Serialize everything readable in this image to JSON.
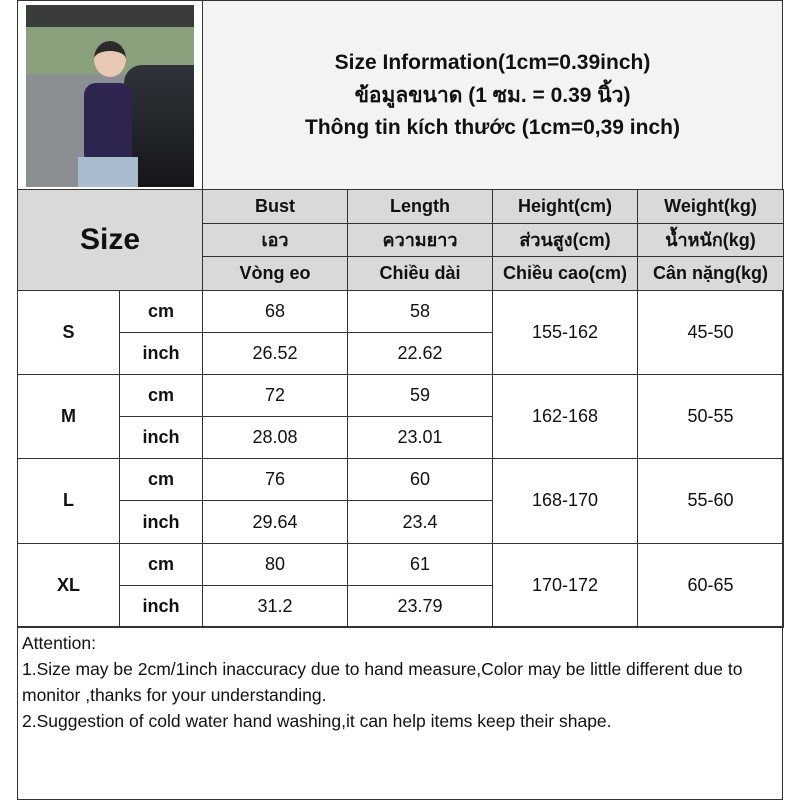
{
  "title": {
    "line1": "Size Information(1cm=0.39inch)",
    "line2": "ข้อมูลขนาด (1 ซม. = 0.39 นิ้ว)",
    "line3": "Thông tin kích thước (1cm=0,39 inch)"
  },
  "table": {
    "size_label": "Size",
    "headers": [
      [
        "Bust",
        "Length",
        "Height(cm)",
        "Weight(kg)"
      ],
      [
        "เอว",
        "ความยาว",
        "ส่วนสูง(cm)",
        "น้ำหนัก(kg)"
      ],
      [
        "Vòng eo",
        "Chiều dài",
        "Chiều cao(cm)",
        "Cân nặng(kg)"
      ]
    ],
    "unit_cm": "cm",
    "unit_inch": "inch",
    "rows": [
      {
        "size": "S",
        "bust_cm": "68",
        "length_cm": "58",
        "bust_inch": "26.52",
        "length_inch": "22.62",
        "height": "155-162",
        "weight": "45-50"
      },
      {
        "size": "M",
        "bust_cm": "72",
        "length_cm": "59",
        "bust_inch": "28.08",
        "length_inch": "23.01",
        "height": "162-168",
        "weight": "50-55"
      },
      {
        "size": "L",
        "bust_cm": "76",
        "length_cm": "60",
        "bust_inch": "29.64",
        "length_inch": "23.4",
        "height": "168-170",
        "weight": "55-60"
      },
      {
        "size": "XL",
        "bust_cm": "80",
        "length_cm": "61",
        "bust_inch": "31.2",
        "length_inch": "23.79",
        "height": "170-172",
        "weight": "60-65"
      }
    ]
  },
  "attention": {
    "heading": "Attention:",
    "note1": "1.Size may be 2cm/1inch inaccuracy due to hand measure,Color may be little different due to monitor ,thanks for your understanding.",
    "note2": "2.Suggestion of cold water hand washing,it can help items keep their shape."
  }
}
